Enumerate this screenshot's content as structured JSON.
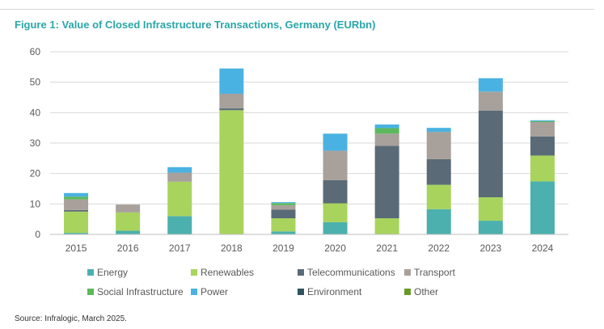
{
  "figure": {
    "title": "Figure 1: Value of Closed Infrastructure Transactions, Germany (EURbn)",
    "source": "Source: Infralogic, March 2025."
  },
  "colors": {
    "Energy": "#4cb0ae",
    "Renewables": "#a8d45d",
    "Telecommunications": "#5a6b77",
    "Transport": "#a8a19b",
    "Social Infrastructure": "#5cb85c",
    "Power": "#4ab2e2",
    "Environment": "#2f5460",
    "Other": "#6a9a2a",
    "title": "#2aa6a6",
    "gridline": "#d9d9d9",
    "axis_text": "#595959"
  },
  "chart_data": {
    "type": "bar",
    "stacked": true,
    "title": "Figure 1: Value of Closed Infrastructure Transactions, Germany (EURbn)",
    "xlabel": "",
    "ylabel": "EURbn",
    "ylim": [
      0,
      60
    ],
    "yticks": [
      0,
      10,
      20,
      30,
      40,
      50,
      60
    ],
    "grid": true,
    "legend": "bottom",
    "categories": [
      "2015",
      "2016",
      "2017",
      "2018",
      "2019",
      "2020",
      "2021",
      "2022",
      "2023",
      "2024"
    ],
    "series": [
      {
        "name": "Energy",
        "values": [
          0.5,
          1.2,
          6.0,
          0,
          1.0,
          4.0,
          0,
          8.3,
          4.5,
          17.4
        ]
      },
      {
        "name": "Renewables",
        "values": [
          7.0,
          6.0,
          11.3,
          40.8,
          4.3,
          6.2,
          5.3,
          8.0,
          7.7,
          8.5
        ]
      },
      {
        "name": "Telecommunications",
        "values": [
          0.5,
          0,
          0,
          0.6,
          2.8,
          7.6,
          23.8,
          8.4,
          28.5,
          6.3
        ]
      },
      {
        "name": "Transport",
        "values": [
          3.5,
          2.6,
          3.0,
          4.8,
          1.5,
          9.7,
          4.0,
          9.0,
          6.2,
          4.7
        ]
      },
      {
        "name": "Social Infrastructure",
        "values": [
          0.9,
          0,
          0,
          0,
          0.7,
          0,
          1.8,
          0,
          0,
          0.3
        ]
      },
      {
        "name": "Power",
        "values": [
          1.2,
          0,
          1.8,
          8.3,
          0.3,
          5.6,
          1.2,
          1.3,
          4.4,
          0.3
        ]
      },
      {
        "name": "Environment",
        "values": [
          0,
          0,
          0,
          0,
          0,
          0,
          0,
          0,
          0,
          0
        ]
      },
      {
        "name": "Other",
        "values": [
          0,
          0,
          0,
          0,
          0,
          0,
          0,
          0,
          0,
          0
        ]
      }
    ]
  }
}
